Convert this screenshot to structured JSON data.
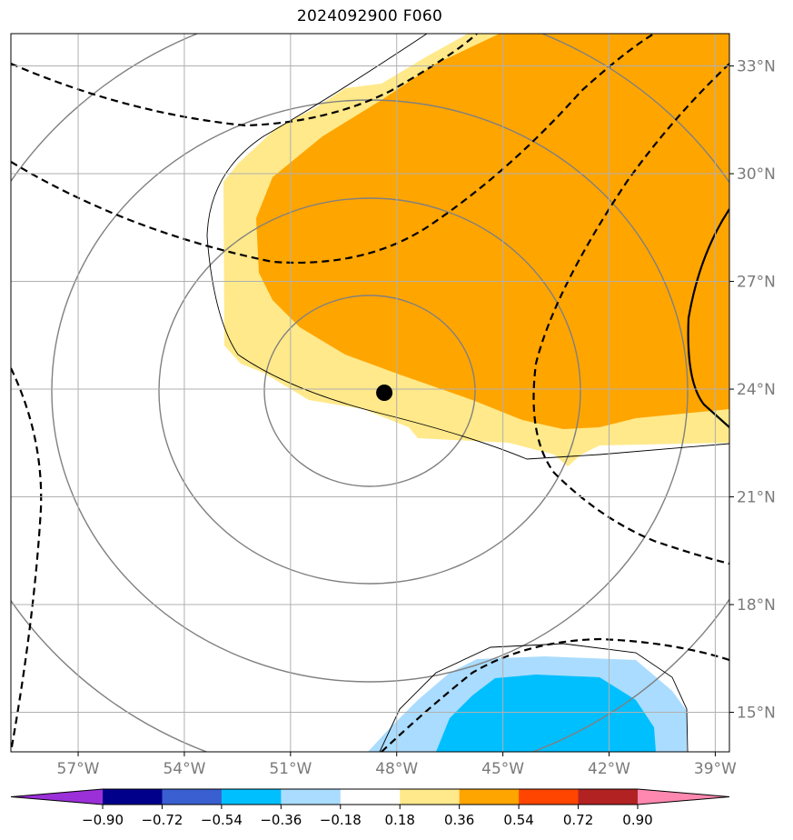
{
  "title": "2024092900 F060",
  "map": {
    "lon_range": [
      -58.9,
      -38.6
    ],
    "lat_range": [
      13.9,
      33.9
    ],
    "lon_ticks": [
      {
        "value": -57,
        "label": "57°W"
      },
      {
        "value": -54,
        "label": "54°W"
      },
      {
        "value": -51,
        "label": "51°W"
      },
      {
        "value": -48,
        "label": "48°W"
      },
      {
        "value": -45,
        "label": "45°W"
      },
      {
        "value": -42,
        "label": "42°W"
      },
      {
        "value": -39,
        "label": "39°W"
      }
    ],
    "lat_ticks": [
      {
        "value": 33,
        "label": "33°N"
      },
      {
        "value": 30,
        "label": "30°N"
      },
      {
        "value": 27,
        "label": "27°N"
      },
      {
        "value": 24,
        "label": "24°N"
      },
      {
        "value": 21,
        "label": "21°N"
      },
      {
        "value": 18,
        "label": "18°N"
      },
      {
        "value": 15,
        "label": "15°N"
      }
    ],
    "storm_center": {
      "lon": -48.35,
      "lat": 23.9
    },
    "grid": true,
    "colors": {
      "grid": "#b0b0b0",
      "isobar": "#808080",
      "light_yellow": "#ffe98a",
      "orange": "#ffa500",
      "light_blue": "#aadcff",
      "cyan": "#00bfff"
    }
  },
  "colorbar": {
    "levels": [
      "−0.90",
      "−0.72",
      "−0.54",
      "−0.36",
      "−0.18",
      "0.18",
      "0.36",
      "0.54",
      "0.72",
      "0.90"
    ],
    "colors": [
      "#9b30d9",
      "#00008b",
      "#3a5fd0",
      "#00bfff",
      "#aadcff",
      "#ffffff",
      "#ffe98a",
      "#ffa500",
      "#ff4500",
      "#b22222",
      "#ff88b0"
    ],
    "extend": "both"
  }
}
